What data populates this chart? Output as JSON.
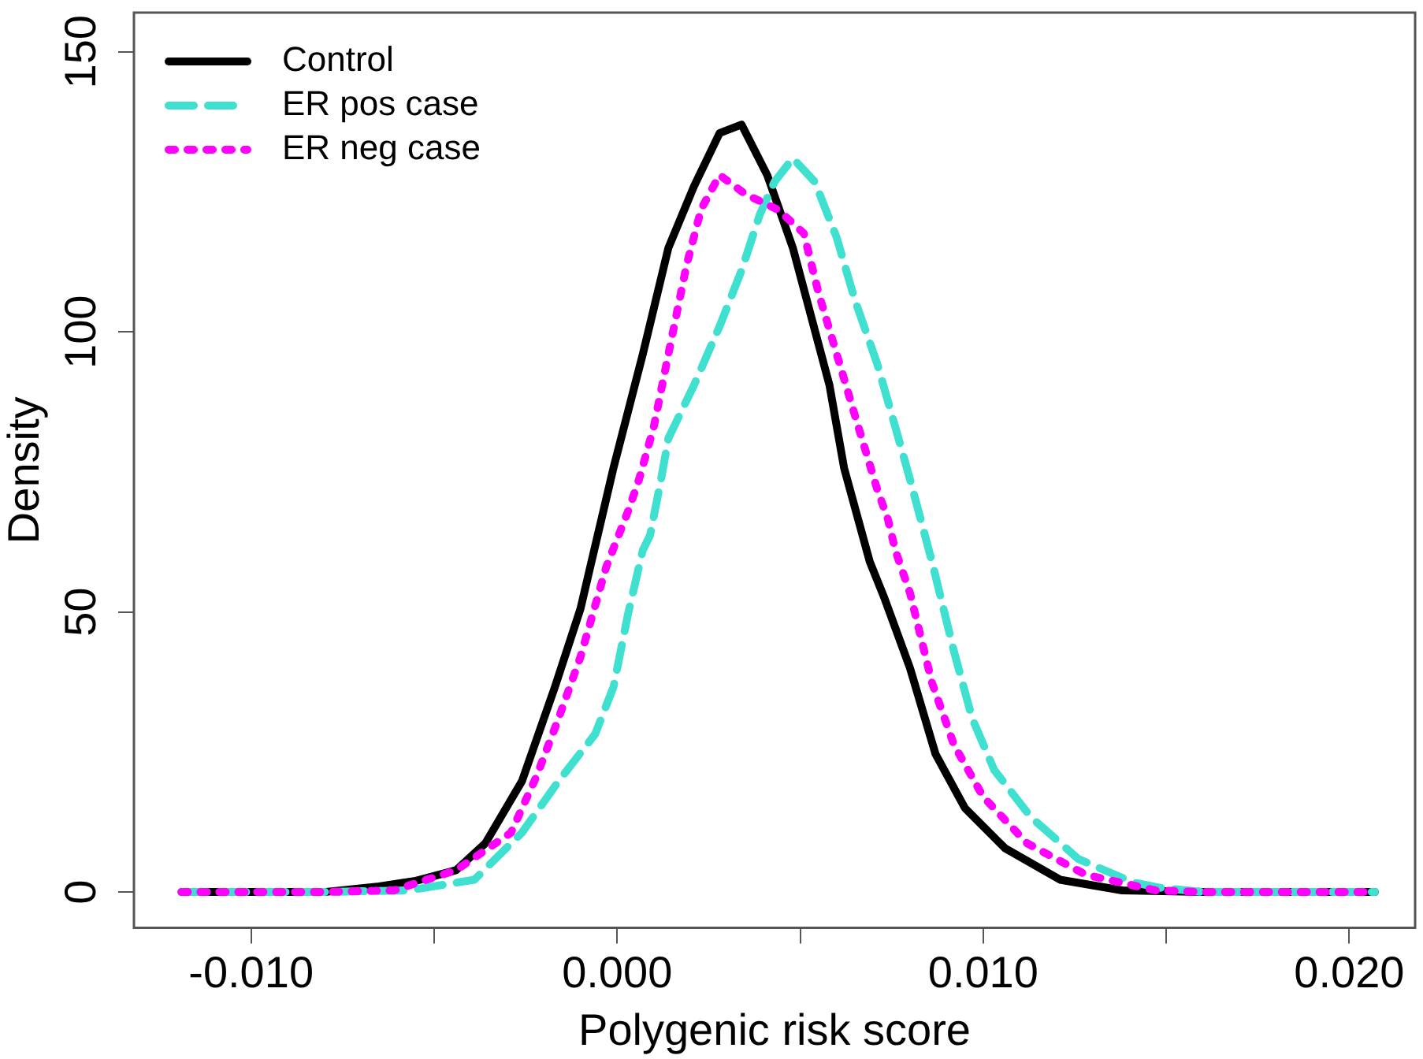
{
  "chart_data": {
    "type": "line",
    "xlabel": "Polygenic risk score",
    "ylabel": "Density",
    "xlim": [
      -0.0132,
      0.0218
    ],
    "ylim": [
      -6.4,
      157
    ],
    "xticks": [
      {
        "value": -0.01,
        "label": "-0.010"
      },
      {
        "value": -0.005,
        "label": null
      },
      {
        "value": 0,
        "label": "0.000"
      },
      {
        "value": 0.005,
        "label": null
      },
      {
        "value": 0.01,
        "label": "0.010"
      },
      {
        "value": 0.015,
        "label": null
      },
      {
        "value": 0.02,
        "label": "0.020"
      }
    ],
    "yticks": [
      0,
      50,
      100,
      150
    ],
    "grid": false,
    "legend": "top left",
    "marker": "none",
    "series": [
      {
        "name": "Control",
        "color": "#000000",
        "line_style": "solid",
        "x": [
          -0.0119,
          -0.008,
          -0.0065,
          -0.0055,
          -0.0044,
          -0.0036,
          -0.0026,
          -0.0017,
          -0.001,
          -0.0007,
          -0.0001,
          0.0007,
          0.0014,
          0.0021,
          0.0028,
          0.0034,
          0.0041,
          0.0048,
          0.0058,
          0.0062,
          0.0069,
          0.0073,
          0.008,
          0.0087,
          0.0095,
          0.0106,
          0.0121,
          0.0138,
          0.016,
          0.0207
        ],
        "values": [
          0,
          0,
          1,
          2,
          3.9,
          8.7,
          19.8,
          36.6,
          50.6,
          59,
          75.7,
          96,
          115,
          126,
          135.5,
          137,
          128,
          115,
          90.5,
          75.7,
          59,
          52.5,
          40,
          24.6,
          15,
          7.8,
          2.2,
          0.3,
          0,
          0
        ]
      },
      {
        "name": "ER pos case",
        "color": "#40e0d0",
        "line_style": "dashed",
        "x": [
          -0.0119,
          -0.008,
          -0.0057,
          -0.0039,
          -0.0026,
          -0.0016,
          -0.0006,
          -0.0001,
          0.0003,
          0.0007,
          0.0009,
          0.0012,
          0.0014,
          0.0021,
          0.0028,
          0.0034,
          0.0039,
          0.0043,
          0.0048,
          0.0054,
          0.006,
          0.0065,
          0.0071,
          0.0076,
          0.008,
          0.0086,
          0.0092,
          0.0097,
          0.0103,
          0.0113,
          0.0126,
          0.0141,
          0.0148,
          0.016,
          0.0207
        ],
        "values": [
          0,
          0,
          0.3,
          2.2,
          10.6,
          19.8,
          28.2,
          36.6,
          49.7,
          61,
          63.7,
          73.7,
          81,
          90.5,
          101,
          111,
          121,
          126.8,
          131,
          126.8,
          116.8,
          105.6,
          94.4,
          83,
          73.7,
          59,
          43,
          31,
          21.8,
          13.4,
          5.9,
          1.7,
          0.8,
          0,
          0
        ]
      },
      {
        "name": "ER neg case",
        "color": "#ff00ff",
        "line_style": "dotted",
        "x": [
          -0.0119,
          -0.008,
          -0.0061,
          -0.0044,
          -0.0029,
          -0.0022,
          -0.0016,
          -0.001,
          -0.0003,
          0.0003,
          0.0006,
          0.001,
          0.0014,
          0.0019,
          0.0023,
          0.0028,
          0.0035,
          0.0044,
          0.0051,
          0.0055,
          0.006,
          0.0065,
          0.0071,
          0.0074,
          0.0076,
          0.008,
          0.0086,
          0.0092,
          0.01,
          0.0112,
          0.0128,
          0.0147,
          0.016,
          0.0207
        ],
        "values": [
          0,
          0,
          0.3,
          3.9,
          10.6,
          20.7,
          31,
          42,
          58,
          68,
          73.7,
          83,
          96,
          112,
          122,
          128,
          124.6,
          121.8,
          117.6,
          107,
          96,
          85,
          72,
          66.5,
          61,
          53.4,
          37.4,
          26.3,
          17,
          8.7,
          3.1,
          0.3,
          0,
          0
        ]
      }
    ]
  }
}
